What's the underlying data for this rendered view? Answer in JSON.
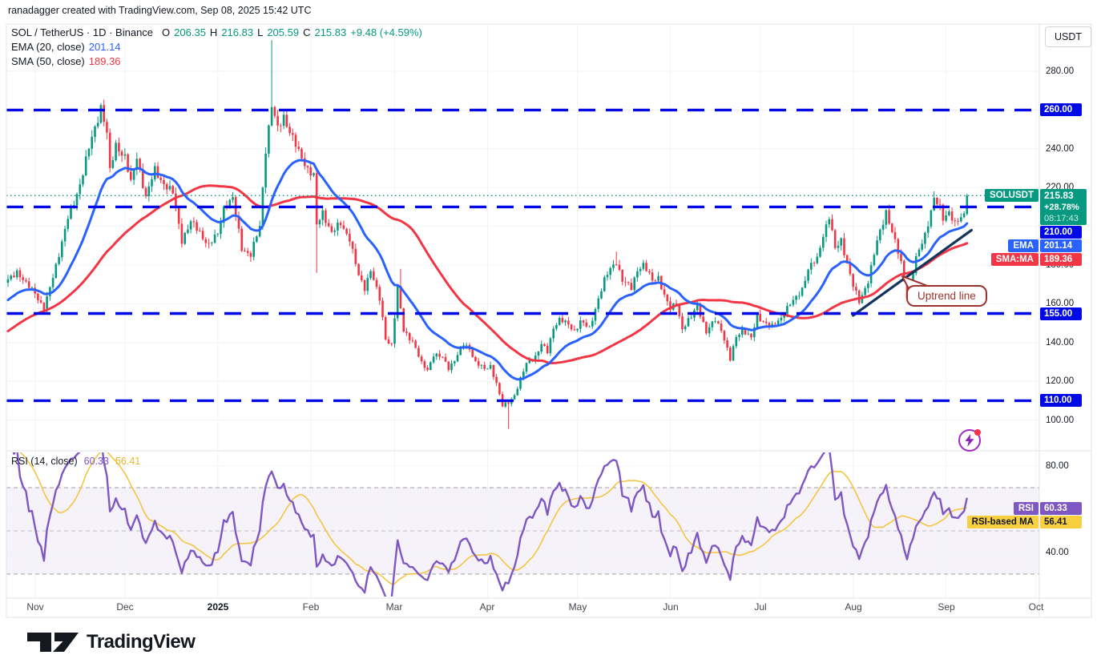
{
  "header": {
    "credit": "ranadagger created with TradingView.com, Sep 08, 2025 15:42 UTC"
  },
  "toolbar": {
    "currency_button": "USDT"
  },
  "legend": {
    "symbol": "SOL / TetherUS · 1D · Binance",
    "open_label": "O",
    "open": "206.35",
    "high_label": "H",
    "high": "216.83",
    "low_label": "L",
    "low": "205.59",
    "close_label": "C",
    "close": "215.83",
    "change": "+9.48 (+4.59%)",
    "ema": {
      "label": "EMA (20, close)",
      "value": "201.14"
    },
    "sma": {
      "label": "SMA (50, close)",
      "value": "189.36"
    }
  },
  "rsi_legend": {
    "label": "RSI (14, close)",
    "value": "60.33",
    "ma_value": "56.41"
  },
  "price_axis": {
    "solusdt": {
      "tag": "SOLUSDT",
      "price": "215.83",
      "change_pct": "+28.78%",
      "countdown": "08:17:43",
      "value": 215.83
    },
    "level_chips": [
      {
        "label": "260.00",
        "value": 260
      },
      {
        "label": "210.00",
        "value": 210
      },
      {
        "label": "155.00",
        "value": 155
      },
      {
        "label": "110.00",
        "value": 110
      }
    ],
    "ema_chip": {
      "tag": "EMA",
      "label": "201.14",
      "value": 201.14
    },
    "sma_chip": {
      "tag": "SMA:MA",
      "label": "189.36",
      "value": 189.36
    },
    "ticks": [
      {
        "label": "280.00",
        "value": 280
      },
      {
        "label": "240.00",
        "value": 240
      },
      {
        "label": "220.00",
        "value": 220
      },
      {
        "label": "180.00",
        "value": 180
      },
      {
        "label": "160.00",
        "value": 160
      },
      {
        "label": "140.00",
        "value": 140
      },
      {
        "label": "120.00",
        "value": 120
      },
      {
        "label": "100.00",
        "value": 100
      }
    ]
  },
  "rsi_axis": {
    "ticks": [
      {
        "label": "80.00",
        "value": 80
      },
      {
        "label": "40.00",
        "value": 40
      }
    ],
    "rsi_chip": {
      "tag": "RSI",
      "label": "60.33",
      "value": 60.33
    },
    "ma_chip": {
      "tag": "RSI-based MA",
      "label": "56.41",
      "value": 56.41
    }
  },
  "x_axis": {
    "bold": "2025",
    "months": [
      {
        "label": "Nov",
        "day": 9
      },
      {
        "label": "Dec",
        "day": 39
      },
      {
        "label": "2025",
        "day": 70
      },
      {
        "label": "Feb",
        "day": 101
      },
      {
        "label": "Mar",
        "day": 129
      },
      {
        "label": "Apr",
        "day": 160
      },
      {
        "label": "May",
        "day": 190
      },
      {
        "label": "Jun",
        "day": 221
      },
      {
        "label": "Jul",
        "day": 251
      },
      {
        "label": "Aug",
        "day": 282
      },
      {
        "label": "Sep",
        "day": 313
      },
      {
        "label": "Oct",
        "day": 343
      }
    ]
  },
  "annotations": {
    "uptrend": {
      "text": "Uptrend line"
    }
  },
  "branding": {
    "logo_text": "TradingView"
  },
  "colors": {
    "up": "#089981",
    "down": "#f23645",
    "ema": "#2962ff",
    "sma": "#f23645",
    "rsi": "#7e57c2",
    "rsi_ma": "#f5c542",
    "level": "#0009e6",
    "trendline": "#12355e",
    "grid": "#f0f3fa",
    "band": "rgba(126,87,194,0.08)",
    "dashed_gray": "#787b86"
  },
  "chart_data": {
    "type": "candlestick",
    "title": "SOL / TetherUS · 1D · Binance",
    "symbol": "SOLUSDT",
    "exchange": "Binance",
    "timeframe": "1D",
    "x_range": "2024-10-23 to 2025-09-08",
    "ylim": [
      85,
      305
    ],
    "price_levels": [
      260,
      210,
      155,
      110
    ],
    "current_price": 215.83,
    "last_candle": {
      "open": 206.35,
      "high": 216.83,
      "low": 205.59,
      "close": 215.83
    },
    "prehistory": {
      "days": 60,
      "start": 108
    },
    "price_keypoints": [
      [
        0,
        172
      ],
      [
        3,
        177
      ],
      [
        6,
        170
      ],
      [
        9,
        166
      ],
      [
        12,
        157
      ],
      [
        14,
        168
      ],
      [
        17,
        186
      ],
      [
        20,
        204
      ],
      [
        22,
        212
      ],
      [
        24,
        222
      ],
      [
        27,
        240
      ],
      [
        30,
        256
      ],
      [
        31,
        262
      ],
      [
        33,
        248
      ],
      [
        34,
        228
      ],
      [
        36,
        242
      ],
      [
        39,
        236
      ],
      [
        41,
        222
      ],
      [
        43,
        236
      ],
      [
        46,
        215
      ],
      [
        49,
        229
      ],
      [
        52,
        222
      ],
      [
        55,
        217
      ],
      [
        58,
        193
      ],
      [
        61,
        202
      ],
      [
        64,
        197
      ],
      [
        67,
        190
      ],
      [
        70,
        196
      ],
      [
        72,
        210
      ],
      [
        75,
        214
      ],
      [
        78,
        189
      ],
      [
        81,
        185
      ],
      [
        84,
        200
      ],
      [
        86,
        240
      ],
      [
        88,
        262
      ],
      [
        90,
        250
      ],
      [
        92,
        257
      ],
      [
        94,
        249
      ],
      [
        97,
        238
      ],
      [
        100,
        230
      ],
      [
        102,
        226
      ],
      [
        103,
        200
      ],
      [
        105,
        207
      ],
      [
        108,
        197
      ],
      [
        111,
        201
      ],
      [
        114,
        194
      ],
      [
        117,
        174
      ],
      [
        119,
        168
      ],
      [
        121,
        178
      ],
      [
        124,
        162
      ],
      [
        126,
        142
      ],
      [
        128,
        139
      ],
      [
        130,
        168
      ],
      [
        132,
        146
      ],
      [
        135,
        141
      ],
      [
        138,
        129
      ],
      [
        140,
        126
      ],
      [
        142,
        134
      ],
      [
        145,
        132
      ],
      [
        147,
        127
      ],
      [
        149,
        131
      ],
      [
        152,
        139
      ],
      [
        154,
        137
      ],
      [
        156,
        130
      ],
      [
        159,
        126
      ],
      [
        161,
        128
      ],
      [
        163,
        119
      ],
      [
        165,
        107
      ],
      [
        167,
        109
      ],
      [
        169,
        113
      ],
      [
        171,
        121
      ],
      [
        173,
        129
      ],
      [
        176,
        133
      ],
      [
        178,
        139
      ],
      [
        180,
        135
      ],
      [
        182,
        148
      ],
      [
        184,
        152
      ],
      [
        187,
        149
      ],
      [
        189,
        146
      ],
      [
        191,
        151
      ],
      [
        194,
        147
      ],
      [
        197,
        163
      ],
      [
        199,
        172
      ],
      [
        201,
        178
      ],
      [
        203,
        182
      ],
      [
        205,
        172
      ],
      [
        208,
        168
      ],
      [
        210,
        178
      ],
      [
        212,
        180
      ],
      [
        215,
        172
      ],
      [
        217,
        174
      ],
      [
        219,
        164
      ],
      [
        221,
        157
      ],
      [
        223,
        161
      ],
      [
        225,
        147
      ],
      [
        228,
        153
      ],
      [
        230,
        160
      ],
      [
        233,
        145
      ],
      [
        236,
        152
      ],
      [
        238,
        147
      ],
      [
        241,
        131
      ],
      [
        243,
        143
      ],
      [
        245,
        147
      ],
      [
        248,
        142
      ],
      [
        250,
        154
      ],
      [
        252,
        151
      ],
      [
        255,
        148
      ],
      [
        258,
        153
      ],
      [
        260,
        158
      ],
      [
        263,
        163
      ],
      [
        265,
        168
      ],
      [
        267,
        178
      ],
      [
        270,
        183
      ],
      [
        272,
        196
      ],
      [
        274,
        205
      ],
      [
        276,
        188
      ],
      [
        278,
        193
      ],
      [
        280,
        181
      ],
      [
        282,
        169
      ],
      [
        284,
        161
      ],
      [
        287,
        172
      ],
      [
        290,
        192
      ],
      [
        293,
        208
      ],
      [
        295,
        197
      ],
      [
        298,
        181
      ],
      [
        300,
        164
      ],
      [
        303,
        183
      ],
      [
        306,
        196
      ],
      [
        309,
        214
      ],
      [
        311,
        209
      ],
      [
        312,
        204
      ],
      [
        314,
        208
      ],
      [
        316,
        201
      ],
      [
        318,
        204
      ],
      [
        319,
        206
      ],
      [
        320,
        215.83
      ]
    ],
    "spikes": [
      {
        "day": 88,
        "high": 296
      },
      {
        "day": 103,
        "low": 176
      },
      {
        "day": 131,
        "high": 178
      },
      {
        "day": 167,
        "low": 95.5
      },
      {
        "day": 203,
        "high": 187
      },
      {
        "day": 309,
        "high": 218
      }
    ],
    "indicators": [
      {
        "name": "EMA",
        "period": 20,
        "source": "close",
        "last": 201.14,
        "color": "#2962ff"
      },
      {
        "name": "SMA",
        "period": 50,
        "source": "close",
        "last": 189.36,
        "color": "#f23645"
      },
      {
        "name": "RSI",
        "period": 14,
        "source": "close",
        "last": 60.33,
        "color": "#7e57c2"
      },
      {
        "name": "RSI-based MA",
        "period": 14,
        "source": "RSI",
        "last": 56.41,
        "color": "#f5c542"
      }
    ],
    "rsi_bands": {
      "upper": 70,
      "middle": 50,
      "lower": 30
    },
    "trendline": {
      "from_day": 282,
      "from_price": 154,
      "to_day": 321.5,
      "to_price": 198,
      "label": "Uptrend line"
    }
  }
}
